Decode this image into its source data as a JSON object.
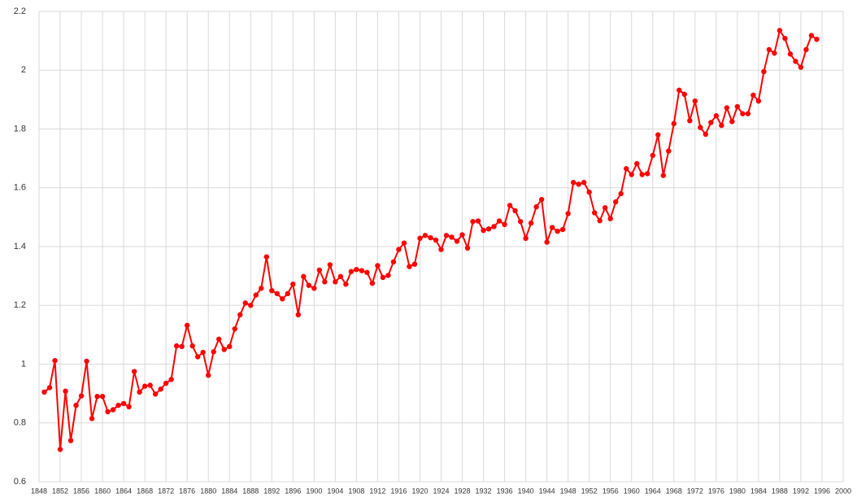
{
  "chart_data": {
    "type": "line",
    "color": "#ff0000",
    "grid": true,
    "x": [
      1849,
      1850,
      1851,
      1852,
      1853,
      1854,
      1855,
      1856,
      1857,
      1858,
      1859,
      1860,
      1861,
      1862,
      1863,
      1864,
      1865,
      1866,
      1867,
      1868,
      1869,
      1870,
      1871,
      1872,
      1873,
      1874,
      1875,
      1876,
      1877,
      1878,
      1879,
      1880,
      1881,
      1882,
      1883,
      1884,
      1885,
      1886,
      1887,
      1888,
      1889,
      1890,
      1891,
      1892,
      1893,
      1894,
      1895,
      1896,
      1897,
      1898,
      1899,
      1900,
      1901,
      1902,
      1903,
      1904,
      1905,
      1906,
      1907,
      1908,
      1909,
      1910,
      1911,
      1912,
      1913,
      1914,
      1915,
      1916,
      1917,
      1918,
      1919,
      1920,
      1921,
      1922,
      1923,
      1924,
      1925,
      1926,
      1927,
      1928,
      1929,
      1930,
      1931,
      1932,
      1933,
      1934,
      1935,
      1936,
      1937,
      1938,
      1939,
      1940,
      1941,
      1942,
      1943,
      1944,
      1945,
      1946,
      1947,
      1948,
      1949,
      1950,
      1951,
      1952,
      1953,
      1954,
      1955,
      1956,
      1957,
      1958,
      1959,
      1960,
      1961,
      1962,
      1963,
      1964,
      1965,
      1966,
      1967,
      1968,
      1969,
      1970,
      1971,
      1972,
      1973,
      1974,
      1975,
      1976,
      1977,
      1978,
      1979,
      1980,
      1981,
      1982,
      1983,
      1984,
      1985,
      1986,
      1987,
      1988,
      1989,
      1990,
      1991,
      1992,
      1993,
      1994,
      1995
    ],
    "values": [
      0.905,
      0.92,
      1.012,
      0.71,
      0.908,
      0.74,
      0.86,
      0.892,
      1.01,
      0.815,
      0.89,
      0.89,
      0.838,
      0.845,
      0.86,
      0.866,
      0.855,
      0.975,
      0.905,
      0.925,
      0.928,
      0.898,
      0.915,
      0.935,
      0.948,
      1.062,
      1.06,
      1.132,
      1.062,
      1.025,
      1.04,
      0.962,
      1.042,
      1.085,
      1.05,
      1.06,
      1.12,
      1.168,
      1.208,
      1.2,
      1.235,
      1.258,
      1.365,
      1.25,
      1.24,
      1.222,
      1.24,
      1.272,
      1.168,
      1.298,
      1.268,
      1.258,
      1.32,
      1.28,
      1.338,
      1.28,
      1.298,
      1.272,
      1.315,
      1.322,
      1.318,
      1.312,
      1.275,
      1.335,
      1.295,
      1.302,
      1.348,
      1.39,
      1.412,
      1.332,
      1.34,
      1.428,
      1.438,
      1.43,
      1.422,
      1.39,
      1.438,
      1.432,
      1.418,
      1.44,
      1.395,
      1.485,
      1.487,
      1.455,
      1.46,
      1.468,
      1.487,
      1.475,
      1.54,
      1.522,
      1.485,
      1.428,
      1.48,
      1.535,
      1.56,
      1.415,
      1.465,
      1.452,
      1.458,
      1.512,
      1.618,
      1.612,
      1.618,
      1.585,
      1.515,
      1.488,
      1.532,
      1.495,
      1.552,
      1.58,
      1.665,
      1.645,
      1.682,
      1.645,
      1.648,
      1.71,
      1.78,
      1.642,
      1.725,
      1.818,
      1.932,
      1.918,
      1.828,
      1.895,
      1.805,
      1.782,
      1.822,
      1.845,
      1.812,
      1.872,
      1.825,
      1.876,
      1.852,
      1.852,
      1.915,
      1.895,
      1.995,
      2.07,
      2.058,
      2.135,
      2.108,
      2.055,
      2.03,
      2.01,
      2.07,
      2.118,
      2.105
    ],
    "xlim": [
      1848,
      2000
    ],
    "xticks": [
      1848,
      1852,
      1856,
      1860,
      1864,
      1868,
      1872,
      1876,
      1880,
      1884,
      1888,
      1892,
      1896,
      1900,
      1904,
      1908,
      1912,
      1916,
      1920,
      1924,
      1928,
      1932,
      1936,
      1940,
      1944,
      1948,
      1952,
      1956,
      1960,
      1964,
      1968,
      1972,
      1976,
      1980,
      1984,
      1988,
      1992,
      1996,
      2000
    ],
    "ylim": [
      0.6,
      2.2
    ],
    "yticks": [
      0.6,
      0.8,
      1,
      1.2,
      1.4,
      1.6,
      1.8,
      2,
      2.2
    ]
  }
}
